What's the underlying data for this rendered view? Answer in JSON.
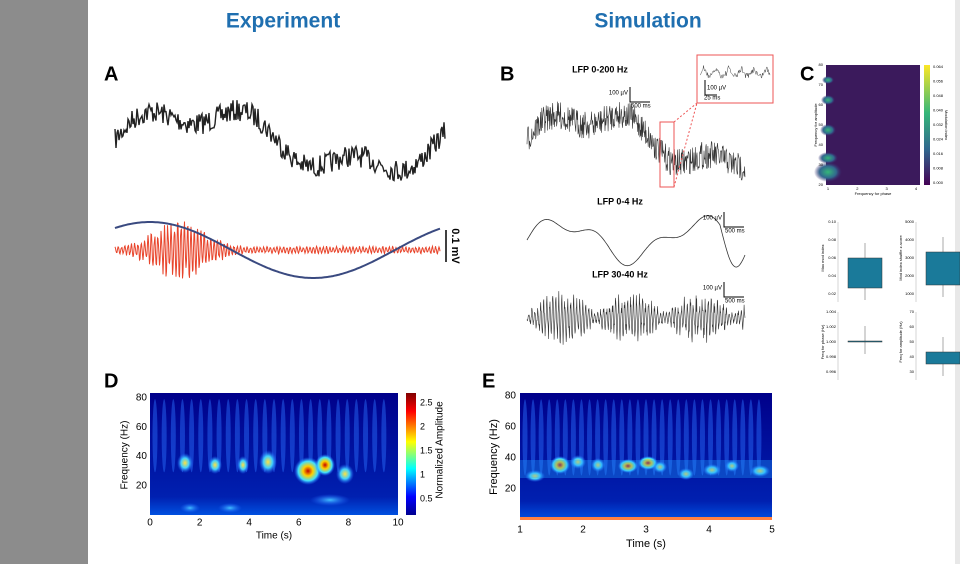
{
  "titles": {
    "experiment": "Experiment",
    "simulation": "Simulation"
  },
  "panel_a": {
    "label": "A",
    "scale": "0.1 mV"
  },
  "panel_b": {
    "label": "B",
    "traces": [
      {
        "title": "LFP 0-200 Hz",
        "scale_v": "100 µV",
        "scale_t": "500 ms"
      },
      {
        "title": "LFP 0-4 Hz",
        "scale_v": "100 µV",
        "scale_t": "500 ms"
      },
      {
        "title": "LFP 30-40 Hz",
        "scale_v": "100 µV",
        "scale_t": "500 ms"
      }
    ],
    "inset": {
      "scale_v": "100 µV",
      "scale_t": "25 ms"
    }
  },
  "panel_c": {
    "label": "C",
    "heatmap": {
      "y_label": "Frequency for amplitude",
      "x_label": "Frequency for phase",
      "colorbar_label": "Modulation index",
      "yticks": [
        "80",
        "70",
        "60",
        "50",
        "40",
        "30",
        "20"
      ],
      "xticks": [
        "1",
        "2",
        "3",
        "4"
      ],
      "colorbar_ticks": [
        "0.064",
        "0.056",
        "0.048",
        "0.040",
        "0.032",
        "0.024",
        "0.016",
        "0.008",
        "0.000"
      ]
    },
    "boxes": [
      {
        "y_label": "Max mod index",
        "yticks": [
          "0.10",
          "0.08",
          "0.06",
          "0.04",
          "0.02"
        ]
      },
      {
        "y_label": "Mod index shuffle z-score",
        "yticks": [
          "5000",
          "4000",
          "3000",
          "2000",
          "1000"
        ]
      },
      {
        "y_label": "Freq for phase (Hz)",
        "yticks": [
          "1.004",
          "1.002",
          "1.000",
          "0.998",
          "0.996"
        ]
      },
      {
        "y_label": "Freq for amplitude (Hz)",
        "yticks": [
          "70",
          "60",
          "50",
          "40",
          "30"
        ]
      }
    ]
  },
  "panel_d": {
    "label": "D",
    "y_label": "Frequency (Hz)",
    "x_label": "Time (s)",
    "yticks": [
      "80",
      "60",
      "40",
      "20"
    ],
    "xticks": [
      "0",
      "2",
      "4",
      "6",
      "8",
      "10"
    ],
    "colorbar_label": "Normalized Amplitude",
    "colorbar_ticks": [
      "2.5",
      "2",
      "1.5",
      "1",
      "0.5"
    ]
  },
  "panel_e": {
    "label": "E",
    "y_label": "Frequency (Hz)",
    "x_label": "Time (s)",
    "yticks": [
      "80",
      "60",
      "40",
      "20"
    ],
    "xticks": [
      "1",
      "2",
      "3",
      "4",
      "5"
    ]
  }
}
